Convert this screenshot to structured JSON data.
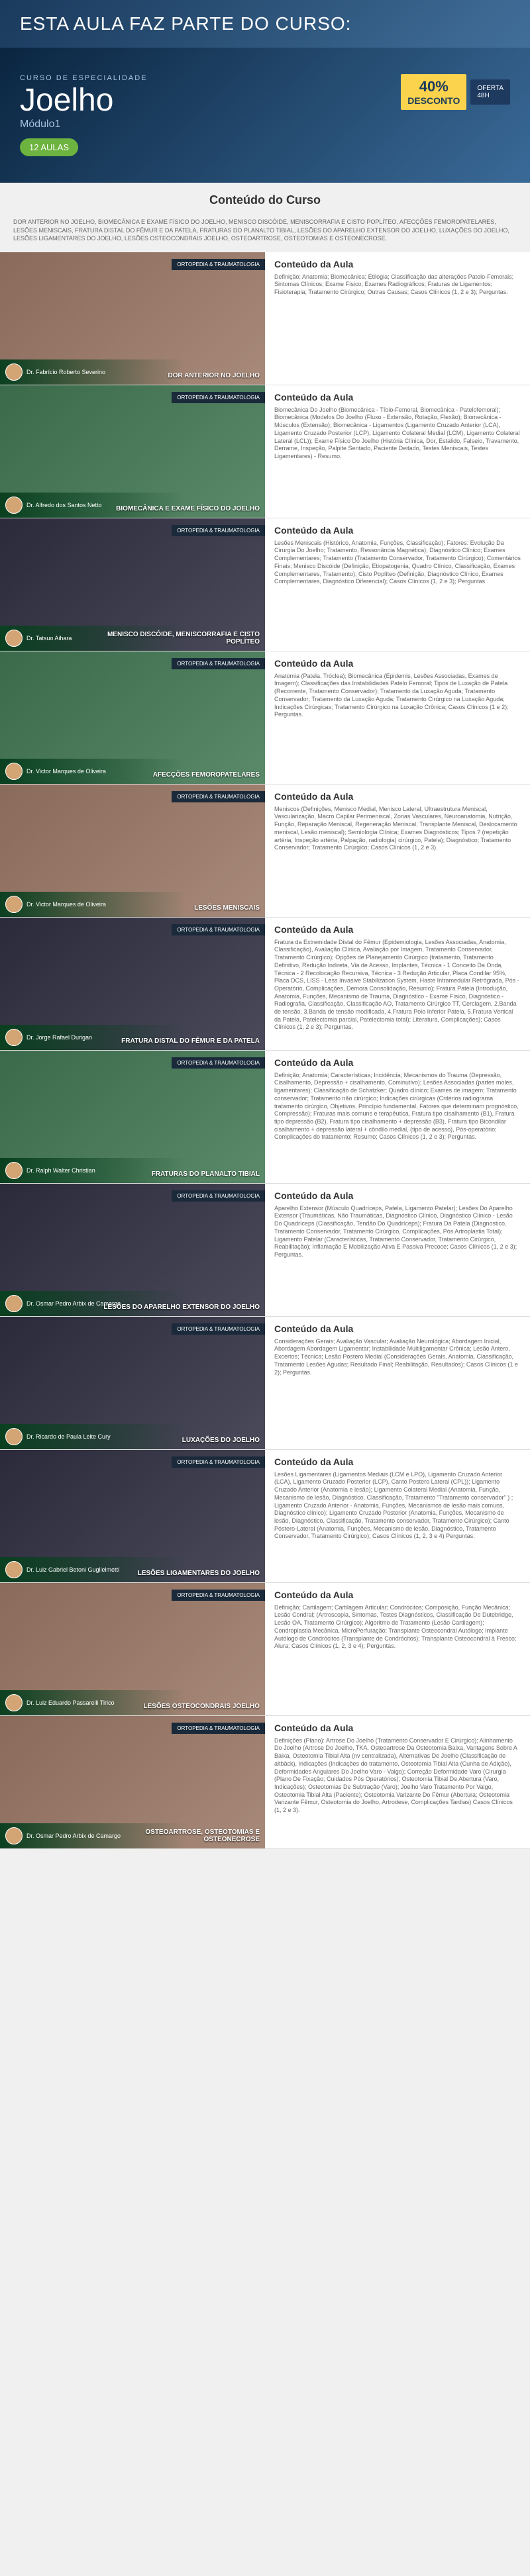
{
  "banner": {
    "headline": "ESTA AULA FAZ PARTE DO CURSO:",
    "subtitle": "CURSO DE ESPECIALIDADE",
    "title": "Joelho",
    "module": "Módulo1",
    "aulas_badge": "12 AULAS",
    "discount_pct": "40%",
    "discount_word": "DESCONTO",
    "oferta_label": "OFERTA",
    "oferta_time": "48H"
  },
  "section_title": "Conteúdo do Curso",
  "intro": "DOR ANTERIOR NO JOELHO, BIOMECÂNICA E EXAME FÍSICO DO JOELHO, MENISCO DISCÓIDE, MENISCORRAFIA E CISTO POPLÍTEO, AFECÇÕES FEMOROPATELARES, LESÕES MENISCAIS, FRATURA DISTAL DO FÊMUR E DA PATELA, FRATURAS DO PLANALTO TIBIAL, LESÕES DO APARELHO EXTENSOR DO JOELHO, LUXAÇÕES DO JOELHO, LESÕES LIGAMENTARES DO JOELHO, LESÕES OSTEOCONDRAIS JOELHO, OSTEOARTROSE, OSTEOTOMIAS E OSTEONECROSE.",
  "tag": "ORTOPEDIA & TRAUMATOLOGIA",
  "content_heading": "Conteúdo da Aula",
  "aulas": [
    {
      "instructor": "Dr. Fabrício Roberto Severino",
      "title": "DOR ANTERIOR NO JOELHO",
      "thumb_class": "clinical",
      "content": "Definição; Anatomia; Biomecânica; Etilogia; Classificação das alterações Patelo-Femorais; Sintomas Clínicos; Exame Físico; Exames Radiográficos; Fraturas de Ligamentos; Fisioterapia; Tratamento Cirúrgico; Outras Causas; Casos Clínicos (1, 2 e 3); Perguntas."
    },
    {
      "instructor": "Dr. Alfredo dos Santos Netto",
      "title": "BIOMECÂNICA E EXAME FÍSICO DO JOELHO",
      "thumb_class": "",
      "content": "Biomecânica Do Joelho (Biomecânica - Tíbio-Femoral, Biomecânica - Patelofemoral); Biomecânica (Modelos Do Joelho (Fluxo - Extensão, Rotação, Flexão); Biomecânica - Músculos (Extensão); Biomecânica - Ligamentos (Ligamento Cruzado Anterior (LCA), Ligamento Cruzado Posterior (LCP), Ligamento Colateral Medial (LCM), Ligamento Colateral Lateral (LCL)); Exame Físico Do Joelho (História Clínica, Dor, Estalido, Falseio, Travamento, Derrame, Inspeção, Palpite Sentado, Paciente Deitado, Testes Meniscais, Testes Ligamentares)  - Resumo."
    },
    {
      "instructor": "Dr. Tatsuo Aihara",
      "title": "MENISCO DISCÓIDE, MENISCORRAFIA E CISTO POPLÍTEO",
      "thumb_class": "xray",
      "content": "Lesões Meniscais (Histórico, Anatomia, Funções, Classificação); Fatores: Evolução Da Cirurgia Do Joelho; Tratamento, Ressonância Magnética); Diagnóstico Clínico; Exames Complementares; Tratamento (Tratamento Conservador, Tratamento Cirúrgico); Comentários Finais; Menisco Discóide (Definição, Etiopatogenia, Quadro Clínico, Classificação, Exames Complementares, Tratamento); Cisto Poplíteo (Definição, Diagnóstico Clínico, Exames Complementares, Diagnóstico Diferencial); Casos Clínicos (1, 2 e 3); Perguntas."
    },
    {
      "instructor": "Dr. Victor Marques de Oliveira",
      "title": "AFECÇÕES FEMOROPATELARES",
      "thumb_class": "",
      "content": "Anatomia (Patela, Tróclea); Biomecânica (Epidemis, Lesões Associadas, Exames de Imagem); Classificações das Instabilidades Patelo Femoral; Tipos de Luxação de Patela (Recorrente, Tratamento Conservador); Tratamento da Luxação Aguda; Tratamento Conservador; Tratamento da Luxação Aguda; Tratamento Cirúrgico na Luxação Aguda; Indicações Cirúrgicas; Tratamento Cirúrgico na Luxação Crônica; Casos Clínicos (1 e 2); Perguntas."
    },
    {
      "instructor": "Dr. Victor Marques de Oliveira",
      "title": "LESÕES MENISCAIS",
      "thumb_class": "clinical",
      "content": "Meniscos (Definições, Menisco Medial, Menisco Lateral, Ultraestrutura Meniscal, Vascularização, Macro Capilar Perimeniscal, Zonas Vasculares, Neuroanatomia, Nutrição, Função, Reparação Meniscal, Regeneração Meniscal, Transplante Meniscal, Deslocamento meniscal, Lesão meniscal); Semiologia Clínica; Exames Diagnósticos; Tipos ? (repetição artéria, Inspeção artéria, Palpação, radiologia) cirúrgico, Patela); Diagnóstico; Tratamento Conservador; Tratamento Cirúrgico; Casos Clínicos (1, 2 e 3)."
    },
    {
      "instructor": "Dr. Jorge Rafael Durigan",
      "title": "FRATURA DISTAL DO FÊMUR E DA PATELA",
      "thumb_class": "xray",
      "content": "Fratura da Extremidade Distal do Fêmur (Epidemiologia, Lesões Associadas, Anatomia, Classificação), Avaliação Clínica, Avaliação por Imagem, Tratamento Conservador, Tratamento Cirúrgico); Opções de Planejamento Cirúrgico (tratamento, Tratamento Definitivo, Redução Indireta, Via de Acesso, Implantes, Técnica - 1 Conceito Da Onda, Técnica - 2 Recolocação Recursiva, Técnica - 3 Redução Articular, Placa Condilar 95%, Placa DCS, LISS - Less Invasive Stabilization System, Haste Intramedular Retrógrada, Pós - Operatório, Complicações, Demora Consolidação, Resumo); Fratura Patela (Introdução, Anatomia, Funções, Mecanismo de Trauma, Diagnóstico - Exame Físico, Diagnóstico - Radiografia, Classificação, Classificação AO, Tratamento Cirúrgico TT, Cerclagem, 2.Banda de tensão, 3.Banda de tensão modificada, 4.Fratura Polo Inferior Patela, 5.Fratura Vertical da Patela, Patelectomia parcial, Patelectomia total); Literatura, Complicações); Casos Clínicos (1, 2 e 3); Perguntas."
    },
    {
      "instructor": "Dr. Ralph Walter Christian",
      "title": "FRATURAS DO PLANALTO TIBIAL",
      "thumb_class": "",
      "content": "Definição; Anatomia; Características; Incidência; Mecanismos do Trauma (Depressão, Cisalhamento, Depressão + cisalhamento, Cominutivo); Lesões Associadas (partes moles, ligamentares); Classificação de Schatzker; Quadro clínico; Exames de imagem; Tratamento conservador; Tratamento não cirúrgico; Indicações cirúrgicas (Critérios radiograma tratamento cirúrgico, Objetivos, Princípio fundamental, Fatores que determinam prognóstico, Compressão); Fraturas mais comuns e terapêutica, Fratura tipo cisalhamento (B1), Fratura tipo depressão (B2), Fratura tipo cisalhamento + depressão (B3), Fratura tipo Bicondilar cisalhamento + depressão lateral + côndilo medial, (tipo de acesso), Pós-operatório; Complicações do tratamento; Resumo; Casos Clínicos (1, 2 e 3); Perguntas."
    },
    {
      "instructor": "Dr. Osmar Pedro Arbix de Camargo",
      "title": "LESÕES DO APARELHO EXTENSOR DO JOELHO",
      "thumb_class": "xray",
      "content": "Aparelho Extensor (Músculo Quadríceps, Patela, Ligamento Patelar); Lesões Do Aparelho Extensor (Traumáticas, Não Traumáticas, Diagnóstico Clínico, Diagnóstico Clínico - Lesão Do Quadríceps (Classificação, Tendão Do Quadríceps); Fratura Da Patela (Diagnostico, Tratamento Conservador, Tratamento Cirúrgico, Complicações, Pós Artroplastia Total); Ligamento Patelar (Características, Tratamento Conservador, Tratamento Cirúrgico, Reabilitação); Inflamação E Mobilização Ativa E Passiva Precoce; Casos Clínicos (1, 2 e 3); Perguntas."
    },
    {
      "instructor": "Dr. Ricardo de Paula Leite Cury",
      "title": "LUXAÇÕES DO JOELHO",
      "thumb_class": "xray",
      "content": "Considerações Gerais; Avaliação Vascular; Avaliação Neurológica; Abordagem Inicial, Abordagem Abordagem Ligamentar; Instabilidade Multiligamentar Crônica; Lesão Antero, Excertos; Técnica; Lesão Postero Medial (Considerações Gerais, Anatomia, Classificação, Tratamento Lesões Agudas; Resultado Final; Reabilitação, Resultados); Casos Clínicos (1 e 2); Perguntas."
    },
    {
      "instructor": "Dr. Luiz Gabriel Betoni Guglielmetti",
      "title": "LESÕES LIGAMENTARES DO JOELHO",
      "thumb_class": "xray",
      "content": "Lesões Ligamentares (Ligamentos Mediais (LCM e LPO), Ligamento Cruzado Anterior (LCA), Ligamento Cruzado Posterior (LCP), Canto Postero Lateral (CPL)); Ligamento Cruzado Anterior (Anatomia e lesão); Ligamento Colateral Medial (Anatomia, Função, Mecanismo de lesão, Diagnóstico, Classificação, Tratamento \"Tratamento conservador\" ) ; Ligamento Cruzado Anterior - Anatomia, Funções, Mecanismos de lesão mais comuns, Diagnóstico clínico); Ligamento Cruzado Posterior (Anatomia, Funções, Mecanismo de lesão, Diagnóstico, Classificação, Tratamento conservador, Tratamento Cirúrgico); Canto Póstero-Lateral (Anatomia, Funções, Mecanismo de lesão, Diagnóstico, Tratamento Conservador, Tratamento Cirúrgico); Casos Clínicos (1, 2, 3 e 4) Perguntas."
    },
    {
      "instructor": "Dr. Luiz Eduardo Passarelli Tirico",
      "title": "LESÕES OSTEOCONDRAIS JOELHO",
      "thumb_class": "clinical",
      "content": "Definição; Cartilagem; Cartilagem Articular; Condrócitos; Composição, Função Mecânica; Lesão Condral; (Artroscopia, Sintomas, Testes Diagnósticos, Classificação De Dutebridge, Lesão OA, Tratamento Cirúrgico); Algoritmo de Tratamento (Lesão Cartilagem); Condroplastia Mecânica, MicroPerfuração; Transplante Osteocondral Autólogo; Implante Autólogo de Condrócitos (Transplante de Condrócitos); Transplante Osteocondral à Fresco; Alura; Casos Clínicos (1, 2, 3 e 4); Perguntas."
    },
    {
      "instructor": "Dr. Osmar Pedro Arbix de Camargo",
      "title": "OSTEOARTROSE, OSTEOTOMIAS E OSTEONECROSE",
      "thumb_class": "clinical",
      "content": "Definições (Plano): Artrose Do Joelho (Tratamento Conservador E Cirúrgico); Alinhamento Do Joelho (Artrose Do Joelho, TKA, Osteoartrose Da Osteotomia Baixa, Vantagens Sobre A Baixa, Osteotomia Tibial Alta (nv centralizada), Alternativas De Joelho (Classificação de altbäck), Indicações (Indicações do tratamento, Osteotomia Tibial Alta (Cunha de Adição), Deformidades Angulares Do Joelho Varo - Valgo); Correção Deformidade Varo (Cirurgia (Plano De Fixação; Cuidados Pós Operatórios); Osteotomia Tibial De Abertura (Varo, Indicações); Osteotomias De Subtração (Varo); Joelho Varo Tratamento Por Valgo, Osteotomia Tibial Alta (Paciente); Osteotomia Varizante Do Fêmur (Abertura; Osteotomia Varizante Fêmur, Osteotomia do Joelho, Artrodese, Complicações Tardias) Casos Clínicos (1, 2 e 3)."
    }
  ]
}
